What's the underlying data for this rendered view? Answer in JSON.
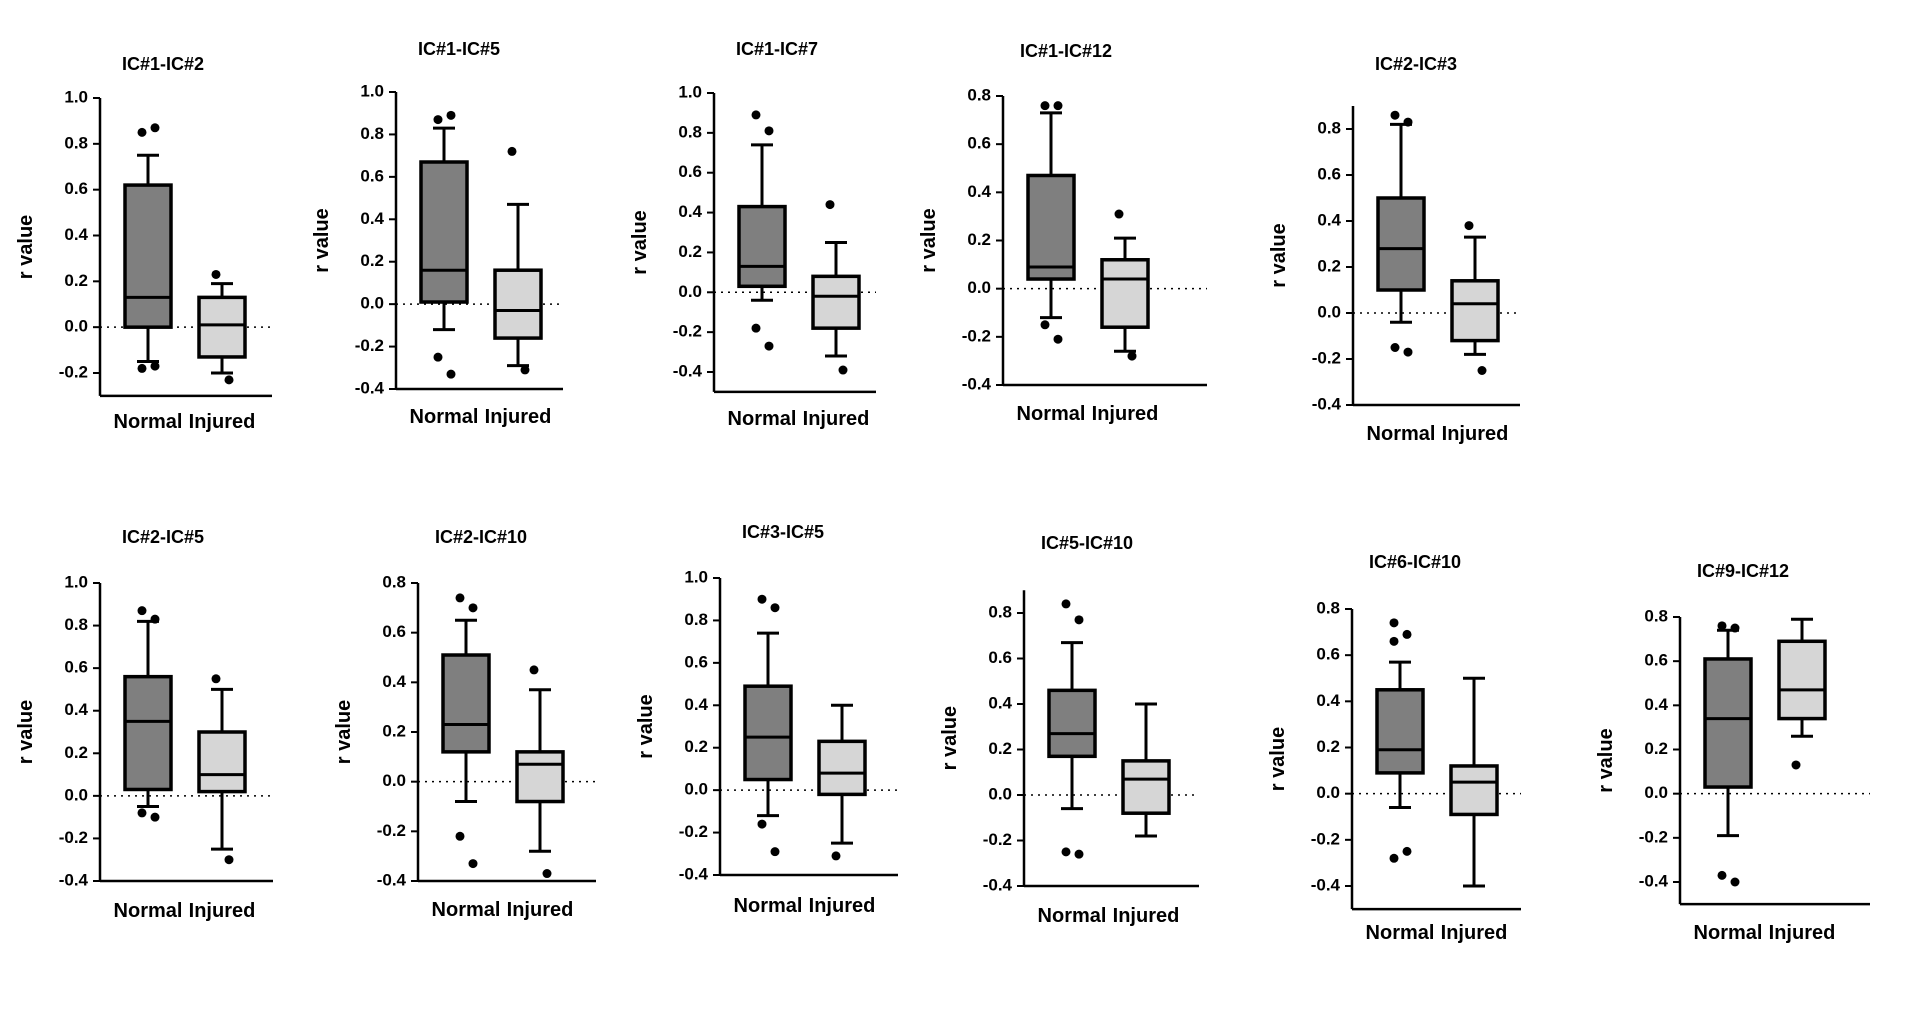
{
  "figure": {
    "type": "box-grid",
    "rows": 2
  },
  "chart_data": [
    {
      "type": "box",
      "title": "IC#1-IC#2",
      "ylabel": "r value",
      "ylim": [
        -0.3,
        1.0
      ],
      "yticks": [
        "1.0",
        "0.8",
        "0.6",
        "0.4",
        "0.2",
        "0.0",
        "-0.2"
      ],
      "ytick_values": [
        1.0,
        0.8,
        0.6,
        0.4,
        0.2,
        0.0,
        -0.2
      ],
      "categories": [
        "Normal",
        "Injured"
      ],
      "colors": [
        "#7f7f7f",
        "#d6d6d6"
      ],
      "zero_line": true,
      "series": [
        {
          "name": "Normal",
          "whisker_low": -0.15,
          "q1": 0.0,
          "median": 0.13,
          "q3": 0.62,
          "whisker_high": 0.75,
          "outliers": [
            0.85,
            0.87,
            -0.18,
            -0.17
          ]
        },
        {
          "name": "Injured",
          "whisker_low": -0.2,
          "q1": -0.13,
          "median": 0.01,
          "q3": 0.13,
          "whisker_high": 0.19,
          "outliers": [
            0.23,
            -0.23
          ]
        }
      ]
    },
    {
      "type": "box",
      "title": "IC#1-IC#5",
      "ylabel": "r value",
      "ylim": [
        -0.4,
        1.0
      ],
      "yticks": [
        "1.0",
        "0.8",
        "0.6",
        "0.4",
        "0.2",
        "0.0",
        "-0.2",
        "-0.4"
      ],
      "ytick_values": [
        1.0,
        0.8,
        0.6,
        0.4,
        0.2,
        0.0,
        -0.2,
        -0.4
      ],
      "categories": [
        "Normal",
        "Injured"
      ],
      "colors": [
        "#7f7f7f",
        "#d6d6d6"
      ],
      "zero_line": true,
      "series": [
        {
          "name": "Normal",
          "whisker_low": -0.12,
          "q1": 0.01,
          "median": 0.16,
          "q3": 0.67,
          "whisker_high": 0.83,
          "outliers": [
            0.87,
            0.89,
            -0.25,
            -0.33
          ]
        },
        {
          "name": "Injured",
          "whisker_low": -0.29,
          "q1": -0.16,
          "median": -0.03,
          "q3": 0.16,
          "whisker_high": 0.47,
          "outliers": [
            0.72,
            -0.31
          ]
        }
      ]
    },
    {
      "type": "box",
      "title": "IC#1-IC#7",
      "ylabel": "r value",
      "ylim": [
        -0.5,
        1.0
      ],
      "yticks": [
        "1.0",
        "0.8",
        "0.6",
        "0.4",
        "0.2",
        "0.0",
        "-0.2",
        "-0.4"
      ],
      "ytick_values": [
        1.0,
        0.8,
        0.6,
        0.4,
        0.2,
        0.0,
        -0.2,
        -0.4
      ],
      "categories": [
        "Normal",
        "Injured"
      ],
      "colors": [
        "#7f7f7f",
        "#d6d6d6"
      ],
      "zero_line": true,
      "series": [
        {
          "name": "Normal",
          "whisker_low": -0.04,
          "q1": 0.03,
          "median": 0.13,
          "q3": 0.43,
          "whisker_high": 0.74,
          "outliers": [
            0.89,
            0.81,
            -0.18,
            -0.27
          ]
        },
        {
          "name": "Injured",
          "whisker_low": -0.32,
          "q1": -0.18,
          "median": -0.02,
          "q3": 0.08,
          "whisker_high": 0.25,
          "outliers": [
            0.44,
            -0.39
          ]
        }
      ]
    },
    {
      "type": "box",
      "title": "IC#1-IC#12",
      "ylabel": "r value",
      "ylim": [
        -0.4,
        0.8
      ],
      "yticks": [
        "0.8",
        "0.6",
        "0.4",
        "0.2",
        "0.0",
        "-0.2",
        "-0.4"
      ],
      "ytick_values": [
        0.8,
        0.6,
        0.4,
        0.2,
        0.0,
        -0.2,
        -0.4
      ],
      "categories": [
        "Normal",
        "Injured"
      ],
      "colors": [
        "#7f7f7f",
        "#d6d6d6"
      ],
      "zero_line": true,
      "series": [
        {
          "name": "Normal",
          "whisker_low": -0.12,
          "q1": 0.04,
          "median": 0.09,
          "q3": 0.47,
          "whisker_high": 0.73,
          "outliers": [
            0.76,
            0.76,
            -0.15,
            -0.21
          ]
        },
        {
          "name": "Injured",
          "whisker_low": -0.26,
          "q1": -0.16,
          "median": 0.04,
          "q3": 0.12,
          "whisker_high": 0.21,
          "outliers": [
            0.31,
            -0.28
          ]
        }
      ]
    },
    {
      "type": "box",
      "title": "IC#2-IC#3",
      "ylabel": "r value",
      "ylim": [
        -0.4,
        0.9
      ],
      "yticks": [
        "0.8",
        "0.6",
        "0.4",
        "0.2",
        "0.0",
        "-0.2",
        "-0.4"
      ],
      "ytick_values": [
        0.8,
        0.6,
        0.4,
        0.2,
        0.0,
        -0.2,
        -0.4
      ],
      "categories": [
        "Normal",
        "Injured"
      ],
      "colors": [
        "#7f7f7f",
        "#d6d6d6"
      ],
      "zero_line": true,
      "series": [
        {
          "name": "Normal",
          "whisker_low": -0.04,
          "q1": 0.1,
          "median": 0.28,
          "q3": 0.5,
          "whisker_high": 0.82,
          "outliers": [
            0.86,
            0.83,
            -0.15,
            -0.17
          ]
        },
        {
          "name": "Injured",
          "whisker_low": -0.18,
          "q1": -0.12,
          "median": 0.04,
          "q3": 0.14,
          "whisker_high": 0.33,
          "outliers": [
            0.38,
            -0.25
          ]
        }
      ]
    },
    {
      "type": "box",
      "title": "IC#2-IC#5",
      "ylabel": "r value",
      "ylim": [
        -0.4,
        1.0
      ],
      "yticks": [
        "1.0",
        "0.8",
        "0.6",
        "0.4",
        "0.2",
        "0.0",
        "-0.2",
        "-0.4"
      ],
      "ytick_values": [
        1.0,
        0.8,
        0.6,
        0.4,
        0.2,
        0.0,
        -0.2,
        -0.4
      ],
      "categories": [
        "Normal",
        "Injured"
      ],
      "colors": [
        "#7f7f7f",
        "#d6d6d6"
      ],
      "zero_line": true,
      "series": [
        {
          "name": "Normal",
          "whisker_low": -0.05,
          "q1": 0.03,
          "median": 0.35,
          "q3": 0.56,
          "whisker_high": 0.82,
          "outliers": [
            0.87,
            0.83,
            -0.08,
            -0.1
          ]
        },
        {
          "name": "Injured",
          "whisker_low": -0.25,
          "q1": 0.02,
          "median": 0.1,
          "q3": 0.3,
          "whisker_high": 0.5,
          "outliers": [
            0.55,
            -0.3
          ]
        }
      ]
    },
    {
      "type": "box",
      "title": "IC#2-IC#10",
      "ylabel": "r value",
      "ylim": [
        -0.4,
        0.8
      ],
      "yticks": [
        "0.8",
        "0.6",
        "0.4",
        "0.2",
        "0.0",
        "-0.2",
        "-0.4"
      ],
      "ytick_values": [
        0.8,
        0.6,
        0.4,
        0.2,
        0.0,
        -0.2,
        -0.4
      ],
      "categories": [
        "Normal",
        "Injured"
      ],
      "colors": [
        "#7f7f7f",
        "#d6d6d6"
      ],
      "zero_line": true,
      "series": [
        {
          "name": "Normal",
          "whisker_low": -0.08,
          "q1": 0.12,
          "median": 0.23,
          "q3": 0.51,
          "whisker_high": 0.65,
          "outliers": [
            0.74,
            0.7,
            -0.22,
            -0.33
          ]
        },
        {
          "name": "Injured",
          "whisker_low": -0.28,
          "q1": -0.08,
          "median": 0.07,
          "q3": 0.12,
          "whisker_high": 0.37,
          "outliers": [
            0.45,
            -0.37
          ]
        }
      ]
    },
    {
      "type": "box",
      "title": "IC#3-IC#5",
      "ylabel": "r value",
      "ylim": [
        -0.4,
        1.0
      ],
      "yticks": [
        "1.0",
        "0.8",
        "0.6",
        "0.4",
        "0.2",
        "0.0",
        "-0.2",
        "-0.4"
      ],
      "ytick_values": [
        1.0,
        0.8,
        0.6,
        0.4,
        0.2,
        0.0,
        -0.2,
        -0.4
      ],
      "categories": [
        "Normal",
        "Injured"
      ],
      "colors": [
        "#7f7f7f",
        "#d6d6d6"
      ],
      "zero_line": true,
      "series": [
        {
          "name": "Normal",
          "whisker_low": -0.12,
          "q1": 0.05,
          "median": 0.25,
          "q3": 0.49,
          "whisker_high": 0.74,
          "outliers": [
            0.9,
            0.86,
            -0.16,
            -0.29
          ]
        },
        {
          "name": "Injured",
          "whisker_low": -0.25,
          "q1": -0.02,
          "median": 0.08,
          "q3": 0.23,
          "whisker_high": 0.4,
          "outliers": [
            -0.31
          ]
        }
      ]
    },
    {
      "type": "box",
      "title": "IC#5-IC#10",
      "ylabel": "r value",
      "ylim": [
        -0.4,
        0.9
      ],
      "yticks": [
        "0.8",
        "0.6",
        "0.4",
        "0.2",
        "0.0",
        "-0.2",
        "-0.4"
      ],
      "ytick_values": [
        0.8,
        0.6,
        0.4,
        0.2,
        0.0,
        -0.2,
        -0.4
      ],
      "categories": [
        "Normal",
        "Injured"
      ],
      "colors": [
        "#7f7f7f",
        "#d6d6d6"
      ],
      "zero_line": true,
      "series": [
        {
          "name": "Normal",
          "whisker_low": -0.06,
          "q1": 0.17,
          "median": 0.27,
          "q3": 0.46,
          "whisker_high": 0.67,
          "outliers": [
            0.84,
            0.77,
            -0.25,
            -0.26
          ]
        },
        {
          "name": "Injured",
          "whisker_low": -0.18,
          "q1": -0.08,
          "median": 0.07,
          "q3": 0.15,
          "whisker_high": 0.4,
          "outliers": []
        }
      ]
    },
    {
      "type": "box",
      "title": "IC#6-IC#10",
      "ylabel": "r value",
      "ylim": [
        -0.5,
        0.8
      ],
      "yticks": [
        "0.8",
        "0.6",
        "0.4",
        "0.2",
        "0.0",
        "-0.2",
        "-0.4"
      ],
      "ytick_values": [
        0.8,
        0.6,
        0.4,
        0.2,
        0.0,
        -0.2,
        -0.4
      ],
      "categories": [
        "Normal",
        "Injured"
      ],
      "colors": [
        "#7f7f7f",
        "#d6d6d6"
      ],
      "zero_line": true,
      "series": [
        {
          "name": "Normal",
          "whisker_low": -0.06,
          "q1": 0.09,
          "median": 0.19,
          "q3": 0.45,
          "whisker_high": 0.57,
          "outliers": [
            0.74,
            0.69,
            0.66,
            -0.25,
            -0.28
          ]
        },
        {
          "name": "Injured",
          "whisker_low": -0.4,
          "q1": -0.09,
          "median": 0.05,
          "q3": 0.12,
          "whisker_high": 0.5,
          "outliers": []
        }
      ]
    },
    {
      "type": "box",
      "title": "IC#9-IC#12",
      "ylabel": "r value",
      "ylim": [
        -0.5,
        0.8
      ],
      "yticks": [
        "0.8",
        "0.6",
        "0.4",
        "0.2",
        "0.0",
        "-0.2",
        "-0.4"
      ],
      "ytick_values": [
        0.8,
        0.6,
        0.4,
        0.2,
        0.0,
        -0.2,
        -0.4
      ],
      "categories": [
        "Normal",
        "Injured"
      ],
      "colors": [
        "#7f7f7f",
        "#d6d6d6"
      ],
      "zero_line": true,
      "series": [
        {
          "name": "Normal",
          "whisker_low": -0.19,
          "q1": 0.03,
          "median": 0.34,
          "q3": 0.61,
          "whisker_high": 0.74,
          "outliers": [
            0.76,
            0.75,
            -0.37,
            -0.4
          ]
        },
        {
          "name": "Injured",
          "whisker_low": 0.26,
          "q1": 0.34,
          "median": 0.47,
          "q3": 0.69,
          "whisker_high": 0.79,
          "outliers": [
            0.13
          ]
        }
      ]
    }
  ]
}
